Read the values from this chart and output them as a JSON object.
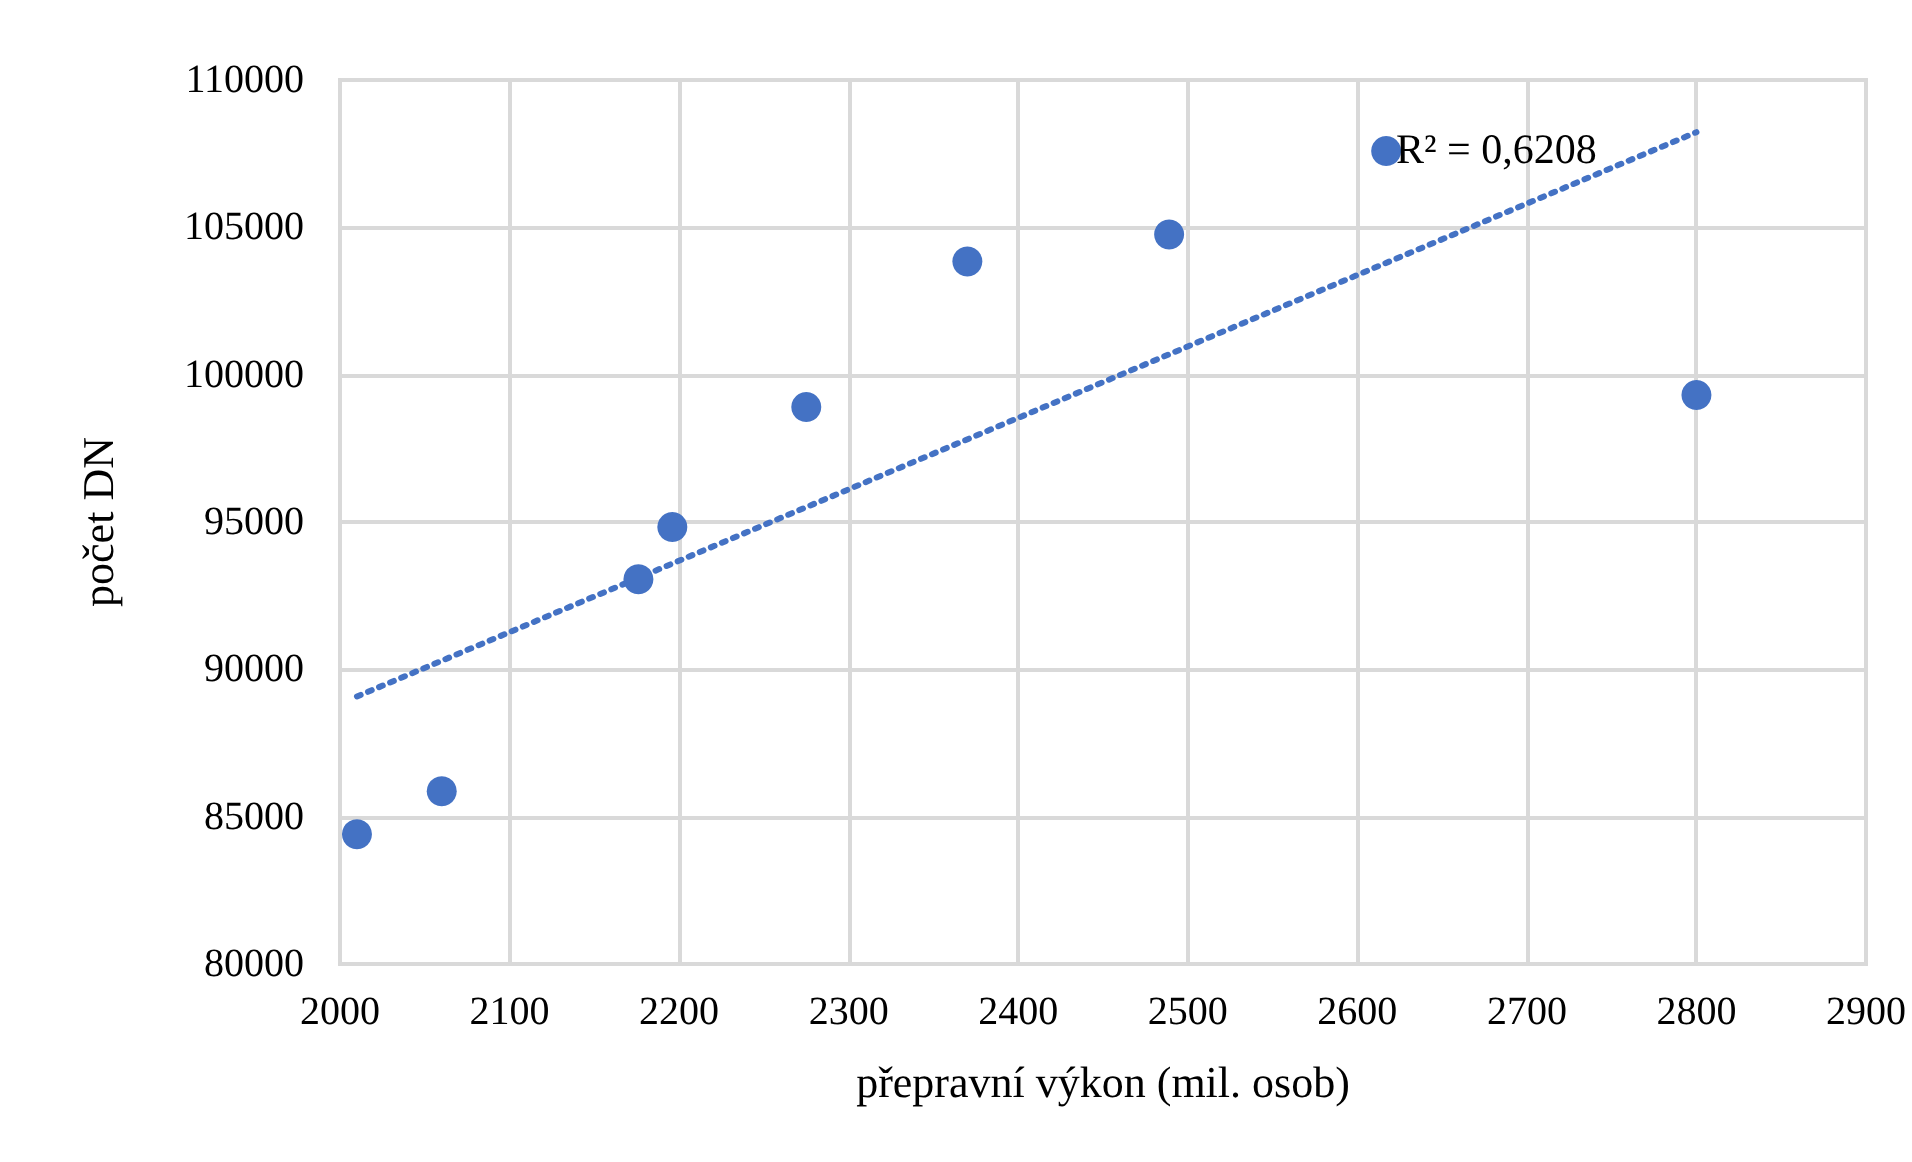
{
  "chart_data": {
    "type": "scatter",
    "xlabel": "přepravní výkon (mil. osob)",
    "ylabel": "počet DN",
    "series": [
      {
        "color": "#4472c4",
        "x": [
          2010,
          2060,
          2176,
          2196,
          2275,
          2370,
          2489,
          2617,
          2800
        ],
        "values": [
          84400,
          85860,
          93060,
          94830,
          98900,
          103840,
          104760,
          107590,
          99310
        ],
        "marker": "circle"
      },
      {
        "type": "line",
        "color": "#4472c4",
        "x": [
          2010,
          2800
        ],
        "values": [
          89080,
          108230
        ],
        "line_style": "dotted",
        "marker": "none"
      }
    ],
    "annotations": [
      "R² = 0,6208"
    ],
    "xlim": [
      2000,
      2900
    ],
    "xticks": [
      2000,
      2100,
      2200,
      2300,
      2400,
      2500,
      2600,
      2700,
      2800,
      2900
    ],
    "ylim": [
      80000,
      110000
    ],
    "yticks": [
      80000,
      85000,
      90000,
      95000,
      100000,
      105000,
      110000
    ],
    "grid": true
  }
}
